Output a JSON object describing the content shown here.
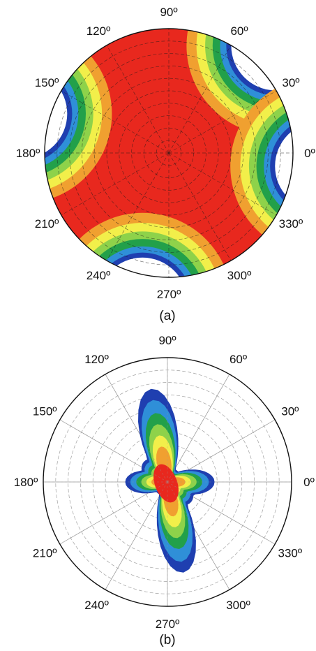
{
  "chart_data": [
    {
      "type": "heatmap",
      "projection": "polar",
      "caption": "(a)",
      "angle_ticks": [
        "0º",
        "30º",
        "60º",
        "90º",
        "120º",
        "150º",
        "180º",
        "210º",
        "240º",
        "270º",
        "300º",
        "330º"
      ],
      "radial_rings": 10,
      "grid": true,
      "colormap": [
        "#ffffff",
        "#1f3fb0",
        "#2f8fd8",
        "#22a04a",
        "#8ed24a",
        "#f2ef4a",
        "#f0a030",
        "#e8281e"
      ],
      "lobes_deg": [
        45,
        165,
        260,
        355
      ],
      "background_level": "red"
    },
    {
      "type": "heatmap",
      "projection": "polar",
      "caption": "(b)",
      "angle_ticks": [
        "0º",
        "30º",
        "60º",
        "90º",
        "120º",
        "150º",
        "180º",
        "210º",
        "240º",
        "270º",
        "300º",
        "330º"
      ],
      "radial_rings": 10,
      "grid": true,
      "colormap": [
        "#ffffff",
        "#1f3fb0",
        "#2f8fd8",
        "#22a04a",
        "#8ed24a",
        "#f2ef4a",
        "#f0a030",
        "#e8281e"
      ],
      "lobes_deg": [
        100,
        180,
        290,
        0
      ],
      "background_level": "white"
    }
  ]
}
